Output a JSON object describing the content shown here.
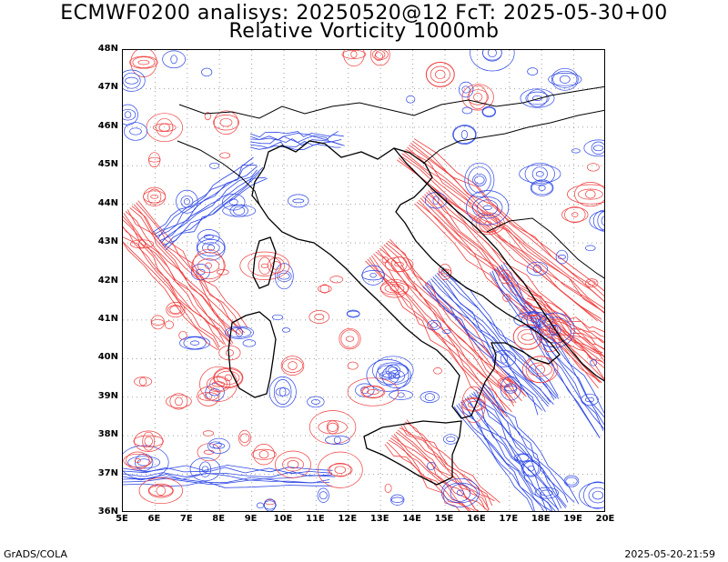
{
  "title_line1": "ECMWF0200 analisys: 20250520@12 FcT: 2025-05-30+00",
  "title_line2": "Relative Vorticity 1000mb",
  "lat_labels": [
    "48N",
    "47N",
    "46N",
    "45N",
    "44N",
    "43N",
    "42N",
    "41N",
    "40N",
    "39N",
    "38N",
    "37N",
    "36N"
  ],
  "lon_labels": [
    "5E",
    "6E",
    "7E",
    "8E",
    "9E",
    "10E",
    "11E",
    "12E",
    "13E",
    "14E",
    "15E",
    "16E",
    "17E",
    "18E",
    "19E",
    "20E"
  ],
  "map": {
    "lon_range": [
      5,
      20
    ],
    "lat_range": [
      36,
      48
    ],
    "grid_style": "dotted",
    "colors": {
      "positive": "#f03c3c",
      "negative": "#2c46e6",
      "coast": "#000000",
      "grid": "#a0a0a0"
    }
  },
  "footer_left": "GrADS/COLA",
  "footer_right": "2025-05-20-21:59"
}
